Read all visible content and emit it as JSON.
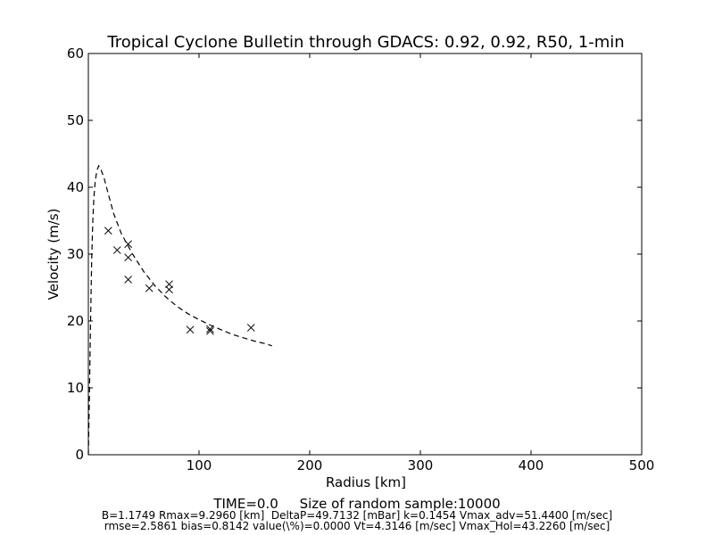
{
  "chart_data": {
    "type": "scatter",
    "title": "Tropical Cyclone Bulletin through GDACS: 0.92, 0.92, R50, 1-min",
    "xlabel": "Radius [km]",
    "ylabel": "Velocity (m/s)",
    "xlim": [
      0,
      500
    ],
    "ylim": [
      0,
      60
    ],
    "x_ticks": [
      100,
      200,
      300,
      400,
      500
    ],
    "y_ticks": [
      0,
      10,
      20,
      30,
      40,
      50,
      60
    ],
    "grid": false,
    "legend": "none",
    "observations": {
      "marker": "x",
      "color": "#000000",
      "points": [
        [
          18,
          33.5
        ],
        [
          26,
          30.6
        ],
        [
          36,
          31.5
        ],
        [
          36,
          29.5
        ],
        [
          36,
          26.2
        ],
        [
          55,
          24.9
        ],
        [
          73,
          25.5
        ],
        [
          73,
          24.7
        ],
        [
          92,
          18.7
        ],
        [
          110,
          18.5
        ],
        [
          110,
          18.8
        ],
        [
          147,
          19.0
        ]
      ]
    },
    "model_profile": {
      "style": "dashed",
      "color": "#000000",
      "points": [
        [
          0,
          0
        ],
        [
          1,
          9
        ],
        [
          2,
          20
        ],
        [
          3,
          29
        ],
        [
          4,
          35
        ],
        [
          5,
          38.5
        ],
        [
          6,
          40.5
        ],
        [
          7,
          41.8
        ],
        [
          8,
          42.6
        ],
        [
          9.3,
          43.2
        ],
        [
          11,
          42.8
        ],
        [
          14,
          41.5
        ],
        [
          18,
          39.0
        ],
        [
          23,
          36.0
        ],
        [
          30,
          33.0
        ],
        [
          40,
          30.0
        ],
        [
          50,
          27.4
        ],
        [
          60,
          25.3
        ],
        [
          70,
          23.6
        ],
        [
          80,
          22.2
        ],
        [
          90,
          21.1
        ],
        [
          100,
          20.2
        ],
        [
          110,
          19.4
        ],
        [
          120,
          18.7
        ],
        [
          130,
          18.0
        ],
        [
          140,
          17.5
        ],
        [
          150,
          17.0
        ],
        [
          160,
          16.6
        ],
        [
          166,
          16.3
        ]
      ]
    }
  },
  "footer": {
    "line1": "TIME=0.0     Size of random sample:10000",
    "line2": "B=1.1749 Rmax=9.2960 [km]  DeltaP=49.7132 [mBar] k=0.1454 Vmax_adv=51.4400 [m/sec]",
    "line3": "rmse=2.5861 bias=0.8142 value(\\%)=0.0000 Vt=4.3146 [m/sec] Vmax_Hol=43.2260 [m/sec]"
  }
}
